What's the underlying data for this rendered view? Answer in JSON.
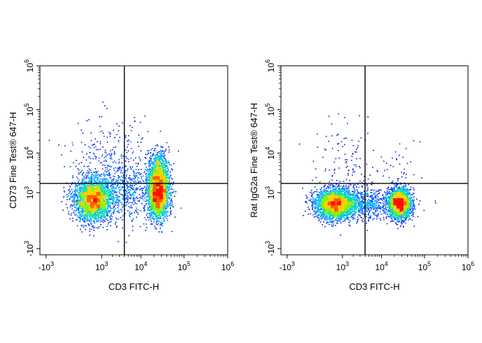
{
  "chart_data": [
    {
      "type": "scatter",
      "subtype": "flow-cytometry-density-dot-plot",
      "xlabel": "CD3 FITC-H",
      "ylabel": "CD73 Fine Test® 647-H",
      "x_scale": "biexponential",
      "y_scale": "biexponential",
      "xlim": [
        -1500,
        1000000
      ],
      "ylim": [
        -1500,
        1000000
      ],
      "x_ticks": [
        "-10^3",
        "10^3",
        "10^4",
        "10^5",
        "10^6"
      ],
      "y_ticks": [
        "-10^3",
        "10^3",
        "10^4",
        "10^5",
        "10^6"
      ],
      "quadrant_gate": {
        "x": 4000,
        "y": 1800
      },
      "color_map": "density (blue → cyan → green → yellow → red)",
      "colors": [
        "#1010c8",
        "#0060ff",
        "#00c8ff",
        "#20e080",
        "#c8f000",
        "#ffb000",
        "#ff2000"
      ],
      "populations": [
        {
          "x": 500,
          "y": 600
        },
        {
          "x": 25000,
          "y": 2500
        },
        {
          "x": 25000,
          "y": 800
        }
      ]
    },
    {
      "type": "scatter",
      "subtype": "flow-cytometry-density-dot-plot",
      "xlabel": "CD3 FITC-H",
      "ylabel": "Rat IgG2a Fine Test® 647-H",
      "x_scale": "biexponential",
      "y_scale": "biexponential",
      "xlim": [
        -1500,
        1000000
      ],
      "ylim": [
        -1500,
        1000000
      ],
      "x_ticks": [
        "-10^3",
        "10^3",
        "10^4",
        "10^5",
        "10^6"
      ],
      "y_ticks": [
        "-10^3",
        "10^3",
        "10^4",
        "10^5",
        "10^6"
      ],
      "quadrant_gate": {
        "x": 4000,
        "y": 1800
      },
      "color_map": "density (blue → cyan → green → yellow → red)",
      "colors": [
        "#1010c8",
        "#0060ff",
        "#00c8ff",
        "#20e080",
        "#c8f000",
        "#ffb000",
        "#ff2000"
      ],
      "populations": [
        {
          "x": 500,
          "y": 450
        },
        {
          "x": 25000,
          "y": 450
        }
      ]
    }
  ]
}
